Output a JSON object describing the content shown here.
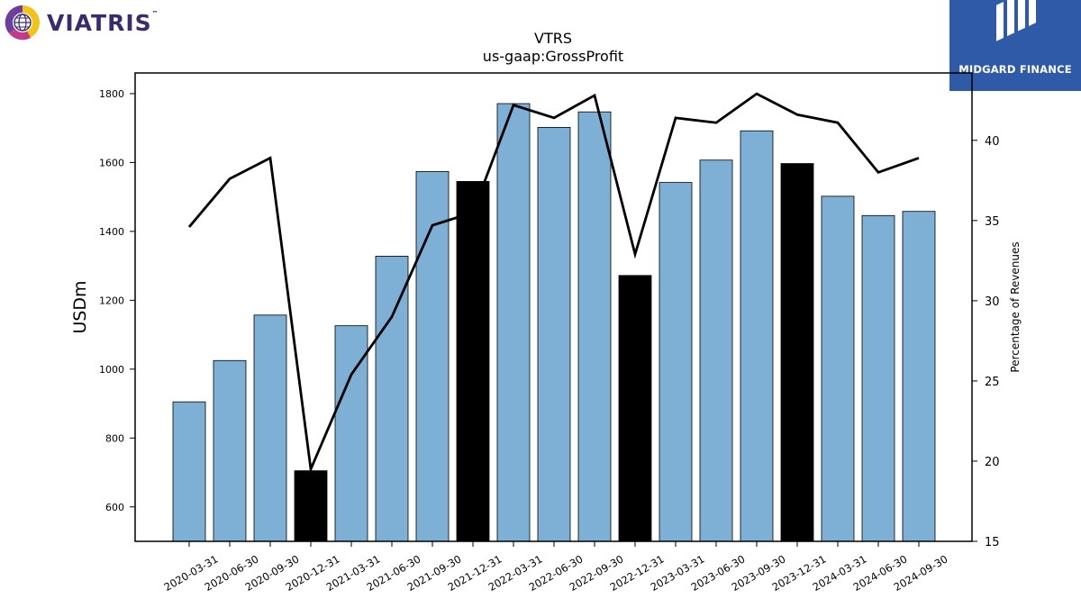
{
  "logos": {
    "left": {
      "wordmark": "VIATRIS",
      "trademark": "™"
    },
    "right": {
      "brand": "MIDGARD FINANCE"
    }
  },
  "chart_data": {
    "type": "bar",
    "title": "VTRS",
    "subtitle": "us-gaap:GrossProfit",
    "ylabel": "USDm",
    "y2label": "Percentage of Revenues",
    "ylim": [
      500,
      1860
    ],
    "y2lim": [
      15,
      44.2
    ],
    "yticks": [
      600,
      800,
      1000,
      1200,
      1400,
      1600,
      1800
    ],
    "y2ticks": [
      15,
      20,
      25,
      30,
      35,
      40
    ],
    "grid": false,
    "categories": [
      "2020-03-31",
      "2020-06-30",
      "2020-09-30",
      "2020-12-31",
      "2021-03-31",
      "2021-06-30",
      "2021-09-30",
      "2021-12-31",
      "2022-03-31",
      "2022-06-30",
      "2022-09-30",
      "2022-12-31",
      "2023-03-31",
      "2023-06-30",
      "2023-09-30",
      "2023-12-31",
      "2024-03-31",
      "2024-06-30",
      "2024-09-30"
    ],
    "series": [
      {
        "type": "bar",
        "axis": "left",
        "values": [
          905,
          1025,
          1157,
          705,
          1126,
          1328,
          1574,
          1545,
          1771,
          1702,
          1747,
          1272,
          1542,
          1607,
          1692,
          1597,
          1502,
          1446,
          1458
        ],
        "highlight": [
          false,
          false,
          false,
          true,
          false,
          false,
          false,
          true,
          false,
          false,
          false,
          true,
          false,
          false,
          false,
          true,
          false,
          false,
          false
        ]
      },
      {
        "type": "line",
        "axis": "right",
        "values": [
          34.6,
          37.6,
          38.9,
          19.5,
          25.4,
          29.0,
          34.7,
          35.5,
          42.2,
          41.4,
          42.8,
          32.9,
          41.4,
          41.1,
          42.9,
          41.6,
          41.1,
          38.0,
          38.9
        ]
      }
    ],
    "colors": {
      "bar": "#7eb0d5",
      "bar_highlight": "#000000",
      "line": "#000000",
      "edge": "#000000"
    }
  }
}
